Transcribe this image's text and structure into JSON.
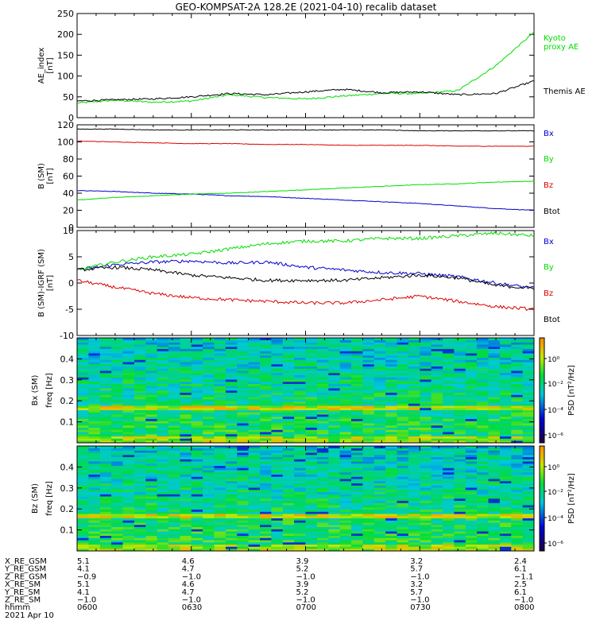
{
  "title": "GEO-KOMPSAT-2A 128.2E (2021-04-10) recalib dataset",
  "chart_data": [
    {
      "type": "line",
      "ylabel": "AE_index [nT]",
      "ylim": [
        0,
        250
      ],
      "yticks": [
        0,
        50,
        100,
        150,
        200,
        250
      ],
      "x": [
        "0600",
        "0610",
        "0620",
        "0630",
        "0640",
        "0650",
        "0700",
        "0710",
        "0720",
        "0730",
        "0740",
        "0750",
        "0800"
      ],
      "series": [
        {
          "name": "Kyoto proxy AE",
          "color": "#00dd00",
          "values": [
            35,
            42,
            37,
            40,
            55,
            48,
            45,
            52,
            58,
            58,
            65,
            125,
            205
          ]
        },
        {
          "name": "Themis AE",
          "color": "#000000",
          "values": [
            40,
            43,
            45,
            50,
            58,
            55,
            62,
            68,
            60,
            62,
            55,
            58,
            88
          ]
        }
      ]
    },
    {
      "type": "line",
      "ylabel": "B (SM) [nT]",
      "ylim": [
        0,
        120
      ],
      "yticks": [
        0,
        20,
        40,
        60,
        80,
        100,
        120
      ],
      "x": [
        "0600",
        "0610",
        "0620",
        "0630",
        "0640",
        "0650",
        "0700",
        "0710",
        "0720",
        "0730",
        "0740",
        "0750",
        "0800"
      ],
      "series": [
        {
          "name": "Bx",
          "color": "#0000cc",
          "values": [
            43,
            42,
            40,
            39,
            37,
            36,
            34,
            32,
            30,
            28,
            25,
            22,
            20
          ]
        },
        {
          "name": "By",
          "color": "#00dd00",
          "values": [
            32,
            35,
            37,
            39,
            40,
            42,
            44,
            46,
            48,
            50,
            51,
            53,
            54
          ]
        },
        {
          "name": "Bz",
          "color": "#dd0000",
          "values": [
            101,
            100,
            99,
            98,
            98,
            97,
            97,
            96,
            96,
            96,
            95,
            95,
            95
          ]
        },
        {
          "name": "Btot",
          "color": "#000000",
          "values": [
            115,
            115,
            114,
            114,
            114,
            114,
            114,
            114,
            114,
            113,
            113,
            113,
            113
          ]
        }
      ]
    },
    {
      "type": "line",
      "ylabel": "B (SM)-IGRF (SM) [nT]",
      "ylim": [
        -10,
        10
      ],
      "yticks": [
        -10,
        -5,
        0,
        5,
        10
      ],
      "x": [
        "0600",
        "0610",
        "0620",
        "0630",
        "0640",
        "0650",
        "0700",
        "0710",
        "0720",
        "0730",
        "0740",
        "0750",
        "0800"
      ],
      "series": [
        {
          "name": "Bx",
          "color": "#0000cc",
          "values": [
            2.5,
            3.5,
            4.0,
            4.2,
            3.8,
            4.0,
            3.0,
            2.5,
            2.0,
            1.8,
            1.2,
            0.0,
            -1.0
          ]
        },
        {
          "name": "By",
          "color": "#00dd00",
          "values": [
            2.5,
            4.0,
            5.0,
            5.5,
            6.5,
            7.5,
            8.0,
            8.0,
            8.5,
            8.5,
            9.0,
            9.5,
            9.0
          ]
        },
        {
          "name": "Bz",
          "color": "#dd0000",
          "values": [
            0.5,
            -0.8,
            -2.0,
            -2.8,
            -3.2,
            -3.5,
            -3.8,
            -3.8,
            -3.2,
            -2.5,
            -3.5,
            -4.5,
            -5.0
          ]
        },
        {
          "name": "Btot",
          "color": "#000000",
          "values": [
            2.5,
            3.0,
            2.5,
            1.5,
            1.0,
            0.5,
            0.5,
            0.5,
            1.0,
            1.5,
            1.0,
            -0.5,
            -1.0
          ]
        }
      ]
    },
    {
      "type": "heatmap",
      "ylabel": "Bx (SM) freq [Hz]",
      "ylim": [
        0,
        0.5
      ],
      "yticks": [
        0.1,
        0.2,
        0.3,
        0.4
      ],
      "colorbar_label": "PSD [nT²/Hz]",
      "colorbar_ticks": [
        "10⁰",
        "10⁻²",
        "10⁻⁴",
        "10⁻⁶"
      ]
    },
    {
      "type": "heatmap",
      "ylabel": "Bz (SM) freq [Hz]",
      "ylim": [
        0,
        0.5
      ],
      "yticks": [
        0.1,
        0.2,
        0.3,
        0.4
      ],
      "colorbar_label": "PSD [nT²/Hz]",
      "colorbar_ticks": [
        "10⁰",
        "10⁻²",
        "10⁻⁴",
        "10⁻⁶"
      ]
    }
  ],
  "legend": {
    "panel1": [
      "Kyoto\nproxy AE",
      "Themis AE"
    ],
    "panel2": [
      "Bx",
      "By",
      "Bz",
      "Btot"
    ],
    "panel3": [
      "Bx",
      "By",
      "Bz",
      "Btot"
    ]
  },
  "ephemeris": {
    "labels": [
      "X_RE_GSM",
      "Y_RE_GSM",
      "Z_RE_GSM",
      "X_RE_SM",
      "Y_RE_SM",
      "Z_RE_SM",
      "hhmm"
    ],
    "columns": [
      [
        "5.1",
        "4.1",
        "-0.9",
        "5.1",
        "4.1",
        "-1.0",
        "0600"
      ],
      [
        "4.6",
        "4.7",
        "-1.0",
        "4.6",
        "4.7",
        "-1.0",
        "0630"
      ],
      [
        "3.9",
        "5.2",
        "-1.0",
        "3.9",
        "5.2",
        "-1.0",
        "0700"
      ],
      [
        "3.2",
        "5.7",
        "-1.0",
        "3.2",
        "5.7",
        "-1.0",
        "0730"
      ],
      [
        "2.4",
        "6.1",
        "-1.1",
        "2.5",
        "6.1",
        "-1.0",
        "0800"
      ]
    ],
    "date": "2021 Apr 10"
  }
}
